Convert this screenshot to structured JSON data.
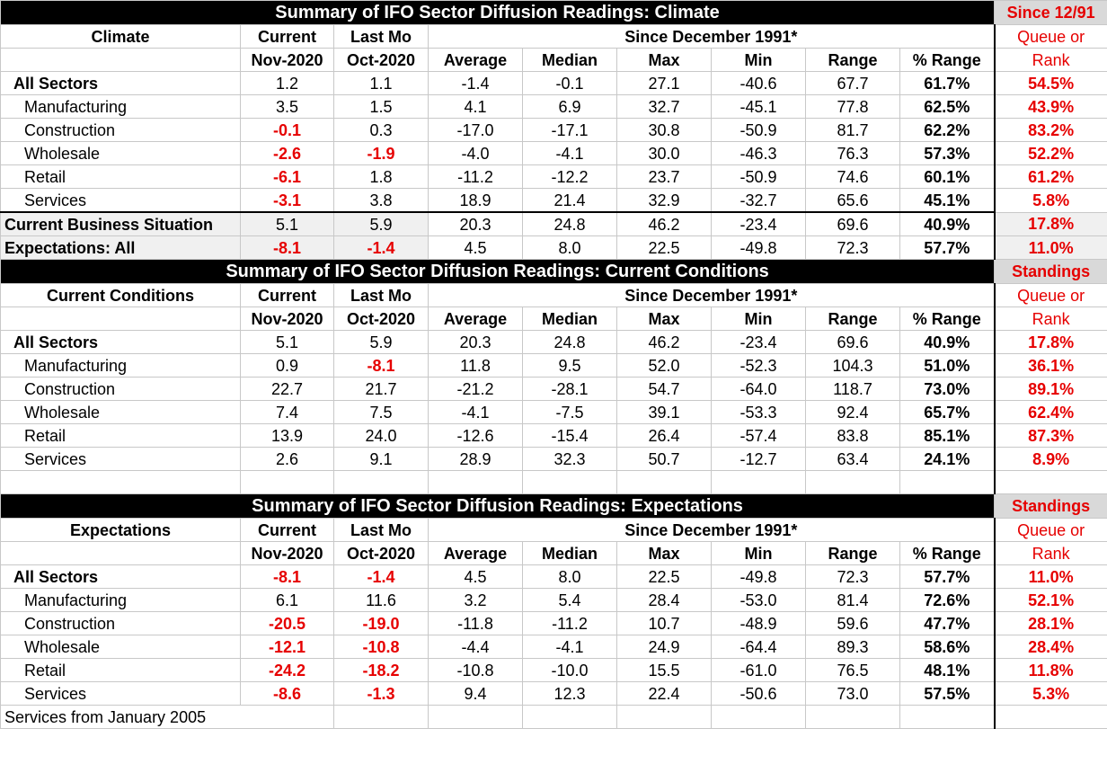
{
  "climate": {
    "title": "Summary of IFO Sector Diffusion Readings: Climate",
    "side_title": "Since 12/91",
    "row_label": "Climate",
    "current": "Current",
    "last_mo": "Last Mo",
    "since": "Since December 1991*",
    "queue": "Queue or",
    "rank": "Rank",
    "current_date": "Nov-2020",
    "last_date": "Oct-2020",
    "cols": [
      "Average",
      "Median",
      "Max",
      "Min",
      "Range",
      "% Range"
    ],
    "rows": [
      [
        "All Sectors",
        "1.2",
        "1.1",
        "-1.4",
        "-0.1",
        "27.1",
        "-40.6",
        "67.7",
        "61.7%",
        "54.5%"
      ],
      [
        "Manufacturing",
        "3.5",
        "1.5",
        "4.1",
        "6.9",
        "32.7",
        "-45.1",
        "77.8",
        "62.5%",
        "43.9%"
      ],
      [
        "Construction",
        "-0.1",
        "0.3",
        "-17.0",
        "-17.1",
        "30.8",
        "-50.9",
        "81.7",
        "62.2%",
        "83.2%"
      ],
      [
        "Wholesale",
        "-2.6",
        "-1.9",
        "-4.0",
        "-4.1",
        "30.0",
        "-46.3",
        "76.3",
        "57.3%",
        "52.2%"
      ],
      [
        "Retail",
        "-6.1",
        "1.8",
        "-11.2",
        "-12.2",
        "23.7",
        "-50.9",
        "74.6",
        "60.1%",
        "61.2%"
      ],
      [
        "Services",
        "-3.1",
        "3.8",
        "18.9",
        "21.4",
        "32.9",
        "-32.7",
        "65.6",
        "45.1%",
        "5.8%"
      ]
    ],
    "extra_rows": [
      [
        "Current Business Situation",
        "5.1",
        "5.9",
        "20.3",
        "24.8",
        "46.2",
        "-23.4",
        "69.6",
        "40.9%",
        "17.8%"
      ],
      [
        "Expectations: All",
        "-8.1",
        "-1.4",
        "4.5",
        "8.0",
        "22.5",
        "-49.8",
        "72.3",
        "57.7%",
        "11.0%"
      ]
    ]
  },
  "current": {
    "title": "Summary of IFO Sector Diffusion Readings: Current Conditions",
    "side_title": "Standings",
    "row_label": "Current Conditions",
    "current": "Current",
    "last_mo": "Last Mo",
    "since": "Since December 1991*",
    "queue": "Queue or",
    "rank": "Rank",
    "current_date": "Nov-2020",
    "last_date": "Oct-2020",
    "cols": [
      "Average",
      "Median",
      "Max",
      "Min",
      "Range",
      "% Range"
    ],
    "rows": [
      [
        "All Sectors",
        "5.1",
        "5.9",
        "20.3",
        "24.8",
        "46.2",
        "-23.4",
        "69.6",
        "40.9%",
        "17.8%"
      ],
      [
        "Manufacturing",
        "0.9",
        "-8.1",
        "11.8",
        "9.5",
        "52.0",
        "-52.3",
        "104.3",
        "51.0%",
        "36.1%"
      ],
      [
        "Construction",
        "22.7",
        "21.7",
        "-21.2",
        "-28.1",
        "54.7",
        "-64.0",
        "118.7",
        "73.0%",
        "89.1%"
      ],
      [
        "Wholesale",
        "7.4",
        "7.5",
        "-4.1",
        "-7.5",
        "39.1",
        "-53.3",
        "92.4",
        "65.7%",
        "62.4%"
      ],
      [
        "Retail",
        "13.9",
        "24.0",
        "-12.6",
        "-15.4",
        "26.4",
        "-57.4",
        "83.8",
        "85.1%",
        "87.3%"
      ],
      [
        "Services",
        "2.6",
        "9.1",
        "28.9",
        "32.3",
        "50.7",
        "-12.7",
        "63.4",
        "24.1%",
        "8.9%"
      ]
    ]
  },
  "expectations": {
    "title": "Summary of IFO Sector Diffusion Readings: Expectations",
    "side_title": "Standings",
    "row_label": "Expectations",
    "current": "Current",
    "last_mo": "Last Mo",
    "since": "Since December 1991*",
    "queue": "Queue or",
    "rank": "Rank",
    "current_date": "Nov-2020",
    "last_date": "Oct-2020",
    "cols": [
      "Average",
      "Median",
      "Max",
      "Min",
      "Range",
      "% Range"
    ],
    "rows": [
      [
        "All Sectors",
        "-8.1",
        "-1.4",
        "4.5",
        "8.0",
        "22.5",
        "-49.8",
        "72.3",
        "57.7%",
        "11.0%"
      ],
      [
        "Manufacturing",
        "6.1",
        "11.6",
        "3.2",
        "5.4",
        "28.4",
        "-53.0",
        "81.4",
        "72.6%",
        "52.1%"
      ],
      [
        "Construction",
        "-20.5",
        "-19.0",
        "-11.8",
        "-11.2",
        "10.7",
        "-48.9",
        "59.6",
        "47.7%",
        "28.1%"
      ],
      [
        "Wholesale",
        "-12.1",
        "-10.8",
        "-4.4",
        "-4.1",
        "24.9",
        "-64.4",
        "89.3",
        "58.6%",
        "28.4%"
      ],
      [
        "Retail",
        "-24.2",
        "-18.2",
        "-10.8",
        "-10.0",
        "15.5",
        "-61.0",
        "76.5",
        "48.1%",
        "11.8%"
      ],
      [
        "Services",
        "-8.6",
        "-1.3",
        "9.4",
        "12.3",
        "22.4",
        "-50.6",
        "73.0",
        "57.5%",
        "5.3%"
      ]
    ]
  },
  "footnote": "Services from January 2005",
  "colors": {
    "negative": "#e60000",
    "title_bg": "#000000",
    "side_bg": "#d9d9d9"
  }
}
